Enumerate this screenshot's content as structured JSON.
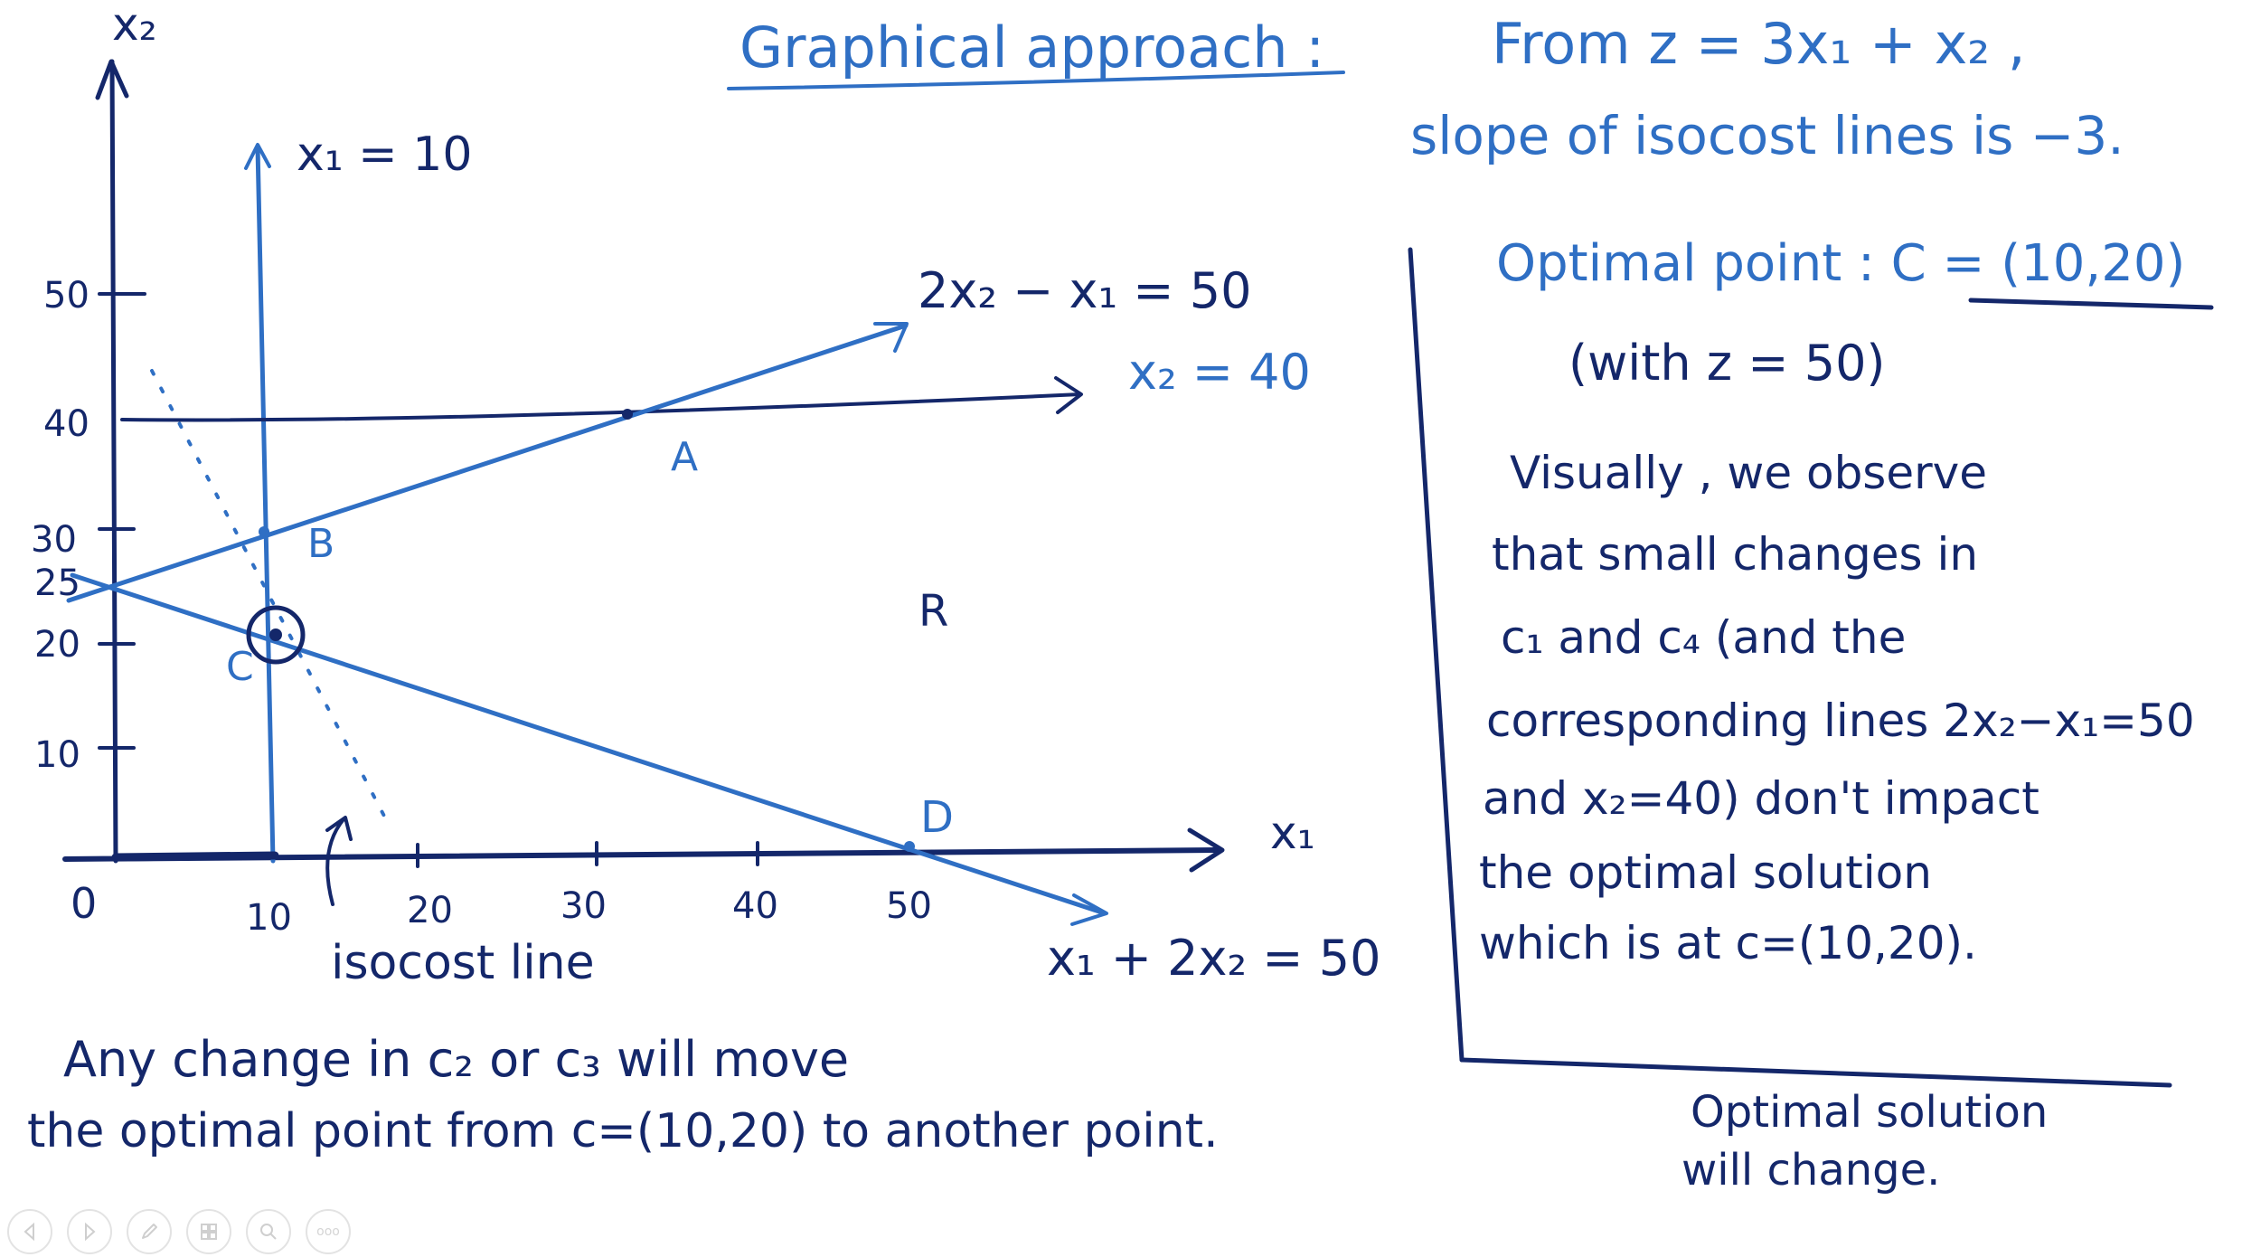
{
  "header": {
    "title": "Graphical approach :",
    "objective_line1": "From   z = 3x₁ + x₂ ,",
    "objective_line2": "slope of isocost lines is −3."
  },
  "graph": {
    "axis_x_label": "x₁",
    "axis_y_label": "x₂",
    "origin_label": "0",
    "y_ticks": [
      "50",
      "40",
      "30",
      "25",
      "20",
      "10"
    ],
    "x_ticks": [
      "10",
      "20",
      "30",
      "40",
      "50"
    ],
    "constraints": {
      "x1_eq_10": "x₁ = 10",
      "line_2x2_minus_x1": "2x₂ − x₁ = 50",
      "x2_eq_40": "x₂ = 40",
      "x1_plus_2x2": "x₁ + 2x₂ = 50"
    },
    "points": {
      "A": "A",
      "B": "B",
      "C": "C",
      "D": "D"
    },
    "region_label": "R",
    "isocost_label": "isocost line",
    "colors": {
      "ink_dark": "#14276a",
      "ink_blue": "#2f6fc4"
    }
  },
  "notes": {
    "optimal_point_label": "Optimal point : ",
    "optimal_point_value": "C = (10,20)",
    "optimal_z": "(with  z = 50)",
    "observation": [
      "Visually , we observe",
      "that small changes in",
      "c₁  and  c₄  (and the",
      "corresponding lines 2x₂−x₁=50",
      "and  x₂=40)  don't impact",
      "the optimal solution",
      "which is at c=(10,20)."
    ],
    "bottom_line1": "Any change in  c₂  or  c₃  will move",
    "bottom_line2": "the optimal point from  c=(10,20)  to another point.",
    "side_note_line1": "Optimal solution",
    "side_note_line2": "will change."
  },
  "toolbar": {
    "icons": [
      "previous-icon",
      "next-icon",
      "pen-icon",
      "slides-icon",
      "zoom-icon",
      "more-icon"
    ],
    "more_label": "ooo"
  }
}
